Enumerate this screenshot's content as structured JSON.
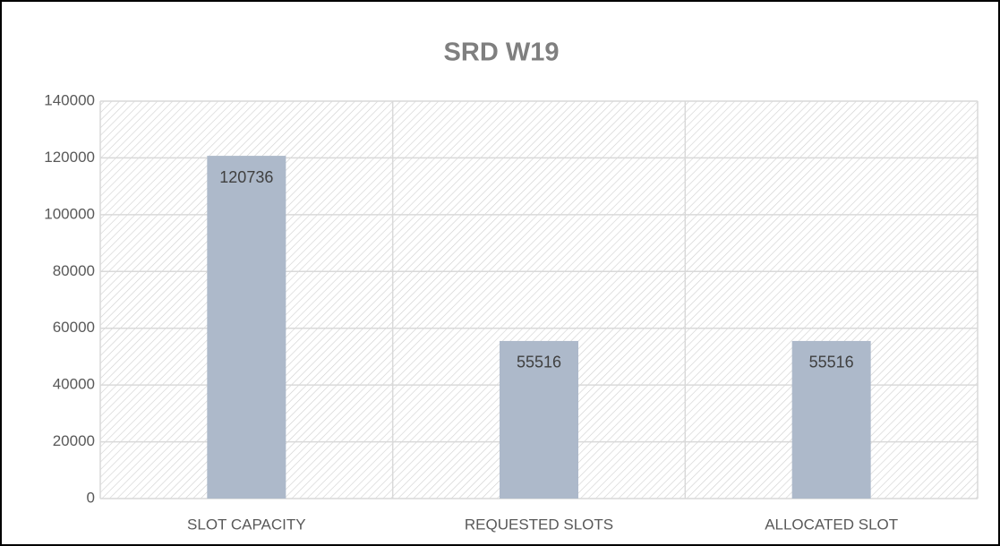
{
  "chart_data": {
    "type": "bar",
    "title": "SRD W19",
    "categories": [
      "SLOT CAPACITY",
      "REQUESTED SLOTS",
      "ALLOCATED SLOT"
    ],
    "values": [
      120736,
      55516,
      55516
    ],
    "color": "#adb9ca",
    "ylim": [
      0,
      140000
    ],
    "yticks": [
      0,
      20000,
      40000,
      60000,
      80000,
      100000,
      120000,
      140000
    ],
    "grid": true,
    "data_labels": true
  }
}
